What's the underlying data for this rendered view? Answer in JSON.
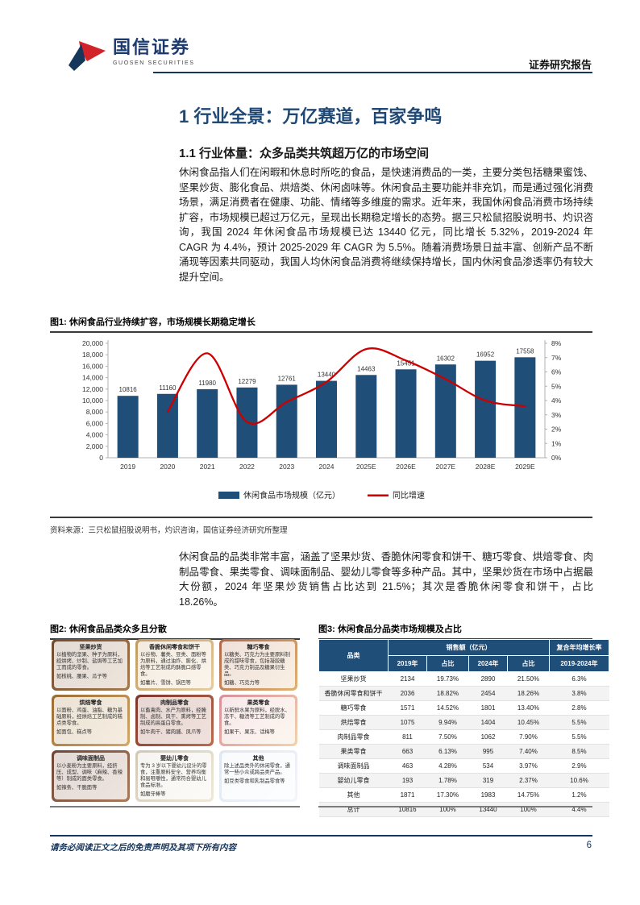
{
  "header": {
    "brand_cn": "国信证券",
    "brand_en": "GUOSEN SECURITIES",
    "report_type": "证券研究报告",
    "brand_blue": "#16365c",
    "brand_red": "#d2232a"
  },
  "section": {
    "h1": "1 行业全景：万亿赛道，百家争鸣",
    "h2": "1.1 行业体量：众多品类共筑超万亿的市场空间",
    "para1": "休闲食品指人们在闲暇和休息时所吃的食品，是快速消费品的一类，主要分类包括糖果蜜饯、坚果炒货、膨化食品、烘焙类、休闲卤味等。休闲食品主要功能并非充饥，而是通过强化消费场景，满足消费者在健康、功能、情绪等多维度的需求。近年来，我国休闲食品消费市场持续扩容，市场规模已超过万亿元，呈现出长期稳定增长的态势。据三只松鼠招股说明书、灼识咨询，我国 2024 年休闲食品市场规模已达 13440 亿元，同比增长 5.32%，2019-2024 年 CAGR 为 4.4%，预计 2025-2029 年 CAGR 为 5.5%。随着消费场景日益丰富、创新产品不断涌现等因素共同驱动，我国人均休闲食品消费将继续保持增长，国内休闲食品渗透率仍有较大提升空间。",
    "para2": "休闲食品的品类非常丰富，涵盖了坚果炒货、香脆休闲零食和饼干、糖巧零食、烘焙零食、肉制品零食、果类零食、调味面制品、婴幼儿零食等多种产品。其中，坚果炒货在市场中占据最大份额，2024 年坚果炒货销售占比达到 21.5%；其次是香脆休闲零食和饼干，占比 18.26%。"
  },
  "figure1": {
    "title": "图1: 休闲食品行业持续扩容，市场规模长期稳定增长",
    "source": "资料来源：三只松鼠招股说明书，灼识咨询，国信证券经济研究所整理"
  },
  "chart_data": {
    "type": "bar+line",
    "title": "休闲食品行业持续扩容，市场规模长期稳定增长",
    "categories": [
      "2019",
      "2020",
      "2021",
      "2022",
      "2023",
      "2024",
      "2025E",
      "2026E",
      "2027E",
      "2028E",
      "2029E"
    ],
    "series": [
      {
        "name": "休闲食品市场规模（亿元）",
        "type": "bar",
        "axis": "left",
        "color": "#1f4e79",
        "values": [
          10816,
          11160,
          11980,
          12279,
          12761,
          13440,
          14463,
          15451,
          16302,
          16952,
          17558
        ]
      },
      {
        "name": "同比增速",
        "type": "line",
        "axis": "right",
        "color": "#cc0000",
        "values": [
          null,
          3.2,
          7.3,
          2.5,
          3.9,
          5.3,
          7.6,
          6.8,
          5.5,
          4.0,
          3.6
        ]
      }
    ],
    "left_axis": {
      "min": 0,
      "max": 20000,
      "step": 2000
    },
    "right_axis": {
      "min": 0,
      "max": 8,
      "step": 1,
      "suffix": "%"
    },
    "grid": false,
    "legend_position": "bottom"
  },
  "figure2": {
    "title": "图2: 休闲食品品类众多且分散",
    "cards": [
      {
        "title": "坚果炒货",
        "desc": "以植物的坚果、种子为原料，经烘烤、炒制、盐焗等工艺加工而成的零食。",
        "examples": "如核桃、腰果、瓜子等"
      },
      {
        "title": "香脆休闲零食和饼干",
        "desc": "以谷物、薯类、豆类、面粉等为原料，通过油炸、膨化、烘焙等工艺制成的酥脆口感零食。",
        "examples": "如薯片、雪饼、锅巴等"
      },
      {
        "title": "糖巧零食",
        "desc": "以糖类、巧克力为主要原料制成的甜味零食，包括凝胶糖类、巧克力制品及糖果衍生品。",
        "examples": "如糖、巧克力等"
      },
      {
        "title": "烘焙零食",
        "desc": "以面粉、鸡蛋、油脂、糖为基础原料，经烘焙工艺制成的糕点类零食。",
        "examples": "如面包、糕点等"
      },
      {
        "title": "肉制品零食",
        "desc": "以畜禽肉、水产为原料，经腌制、卤制、风干、熏烤等工艺制成的高蛋白零食。",
        "examples": "如牛肉干、猪肉脯、凤爪等"
      },
      {
        "title": "果类零食",
        "desc": "以新鲜水果为原料，经脱水、冻干、糖渍等工艺制成的零食。",
        "examples": "如果干、果冻、话梅等"
      },
      {
        "title": "调味面制品",
        "desc": "以小麦粉为主要原料，经挤压、成型、调味（麻辣、香辣等）制成的面类零食。",
        "examples": "如辣条、干脆面等"
      },
      {
        "title": "婴幼儿零食",
        "desc": "专为 3 岁以下婴幼儿设计的零食，注重原料安全、营养均衡和易咀嚼性，通常符合婴幼儿食品标准。",
        "examples": "如磨牙棒等"
      },
      {
        "title": "其他",
        "desc": "除上述品类外的休闲零食，通常一些小众或跨品类产品。",
        "examples": "如豆类零食和乳制品零食等"
      }
    ]
  },
  "figure3": {
    "title": "图3: 休闲食品分品类市场规模及占比",
    "table": {
      "corner_header": "品类",
      "group_headers": [
        "销售额（亿元）",
        "复合年均增长率"
      ],
      "sub_headers": [
        "2019年",
        "占比",
        "2024年",
        "占比",
        "2019-2024年"
      ],
      "header_color": "#1f4e79",
      "rows": [
        [
          "坚果炒货",
          "2134",
          "19.73%",
          "2890",
          "21.50%",
          "6.3%"
        ],
        [
          "香脆休闲零食和饼干",
          "2036",
          "18.82%",
          "2454",
          "18.26%",
          "3.8%"
        ],
        [
          "糖巧零食",
          "1571",
          "14.52%",
          "1801",
          "13.40%",
          "2.8%"
        ],
        [
          "烘焙零食",
          "1075",
          "9.94%",
          "1404",
          "10.45%",
          "5.5%"
        ],
        [
          "肉制品零食",
          "811",
          "7.50%",
          "1062",
          "7.90%",
          "5.5%"
        ],
        [
          "果类零食",
          "663",
          "6.13%",
          "995",
          "7.40%",
          "8.5%"
        ],
        [
          "调味面制品",
          "463",
          "4.28%",
          "534",
          "3.97%",
          "2.9%"
        ],
        [
          "婴幼儿零食",
          "193",
          "1.78%",
          "319",
          "2.37%",
          "10.6%"
        ],
        [
          "其他",
          "1871",
          "17.30%",
          "1983",
          "14.75%",
          "1.2%"
        ],
        [
          "总计",
          "10816",
          "100%",
          "13440",
          "100%",
          "4.4%"
        ]
      ]
    }
  },
  "footer": {
    "disclaimer": "请务必阅读正文之后的免责声明及其项下所有内容",
    "page_number": "6"
  }
}
